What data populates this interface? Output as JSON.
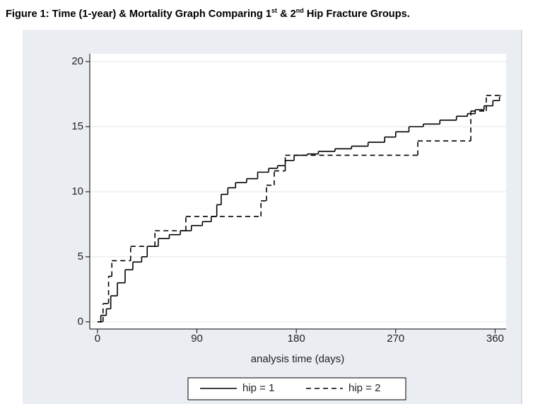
{
  "chart_data": {
    "type": "line",
    "step": true,
    "title_parts": [
      "Figure 1: Time (1-year) & Mortality Graph Comparing 1",
      "st",
      " & 2",
      "nd",
      " Hip Fracture Groups."
    ],
    "x_label": "analysis time (days)",
    "xlim": [
      -7,
      370
    ],
    "ylim": [
      -0.55,
      20.6
    ],
    "xticks": [
      0,
      90,
      180,
      270,
      360
    ],
    "yticks": [
      0,
      5,
      10,
      15,
      20
    ],
    "grid": true,
    "legend": "bottom",
    "series": [
      {
        "name": "hip = 1",
        "color": "#000000",
        "dash": "solid",
        "x": [
          0,
          3,
          8,
          12,
          18,
          25,
          32,
          40,
          45,
          55,
          65,
          75,
          85,
          95,
          103,
          108,
          112,
          118,
          125,
          135,
          145,
          155,
          163,
          170,
          178,
          190,
          200,
          215,
          230,
          245,
          260,
          270,
          282,
          295,
          310,
          325,
          335,
          342,
          350,
          358,
          364
        ],
        "values": [
          0,
          0.5,
          1.0,
          2.0,
          3.0,
          4.0,
          4.6,
          5.0,
          5.8,
          6.4,
          6.7,
          7.0,
          7.4,
          7.7,
          8.1,
          9.0,
          9.8,
          10.3,
          10.7,
          11.0,
          11.5,
          11.8,
          12.0,
          12.4,
          12.8,
          12.9,
          13.1,
          13.3,
          13.5,
          13.8,
          14.2,
          14.6,
          15.0,
          15.2,
          15.5,
          15.8,
          16.0,
          16.3,
          16.6,
          17.0,
          17.3
        ]
      },
      {
        "name": "hip = 2",
        "color": "#000000",
        "dash": "dashed",
        "x": [
          0,
          5,
          10,
          13,
          30,
          52,
          80,
          148,
          153,
          160,
          170,
          290,
          338,
          352,
          365
        ],
        "values": [
          0,
          1.4,
          3.5,
          4.7,
          5.8,
          7.0,
          8.1,
          9.3,
          10.5,
          11.6,
          12.8,
          13.9,
          16.2,
          17.4,
          17.4
        ]
      }
    ]
  }
}
